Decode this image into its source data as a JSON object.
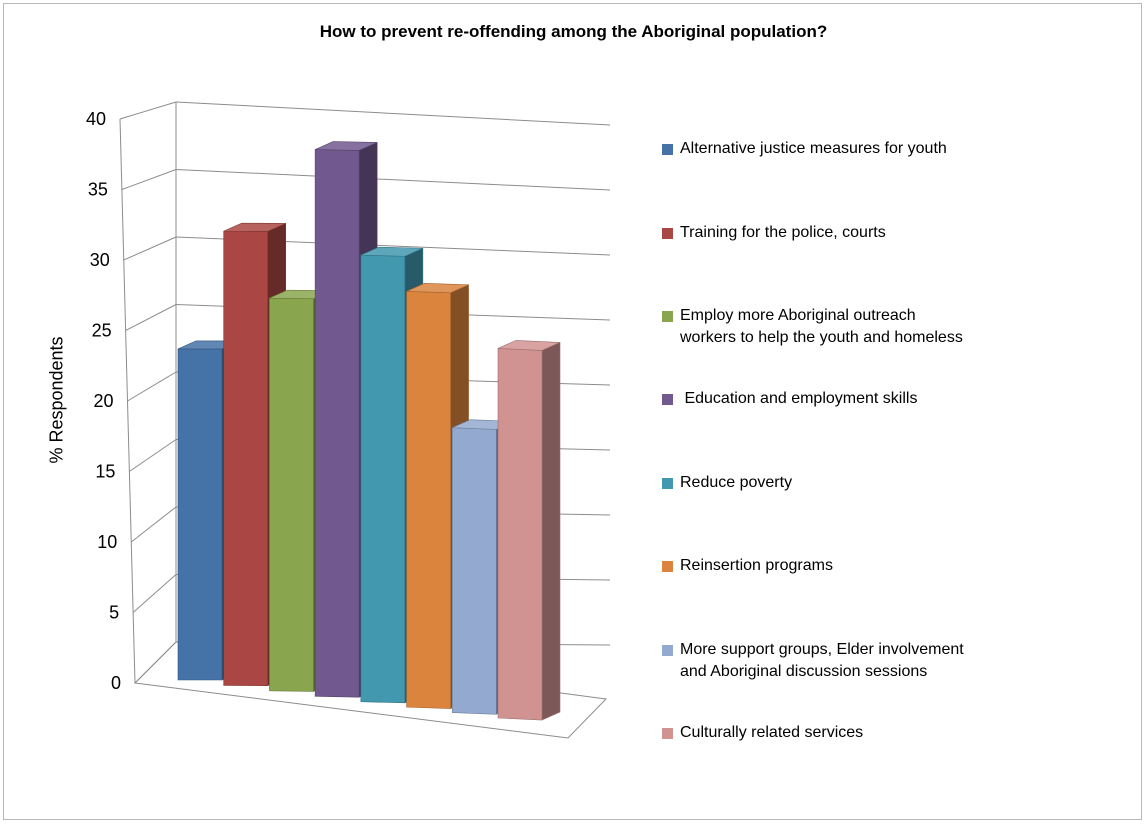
{
  "chart_data": {
    "type": "bar",
    "title": "How to prevent re-offending among the Aboriginal population?",
    "ylabel": "% Respondents",
    "xlabel": "",
    "ylim": [
      0,
      40
    ],
    "yticks": [
      "0",
      "5",
      "10",
      "15",
      "20",
      "25",
      "30",
      "35",
      "40"
    ],
    "grid": true,
    "three_d": true,
    "legend_position": "right",
    "categories": [
      "Alternative justice measures for youth",
      "Training for the police, courts",
      "Employ more Aboriginal outreach workers to help the youth and homeless",
      "Education and employment skills",
      "Reduce poverty",
      "Reinsertion programs",
      "More support groups, Elder involvement and Aboriginal discussion sessions",
      "Culturally related services"
    ],
    "legend": [
      [
        "Alternative justice measures for youth"
      ],
      [
        "Training for the police, courts"
      ],
      [
        "Employ more Aboriginal outreach",
        "workers to help the youth and homeless"
      ],
      [
        " Education and employment skills"
      ],
      [
        "Reduce poverty"
      ],
      [
        "Reinsertion programs"
      ],
      [
        "More support groups, Elder involvement",
        "and Aboriginal discussion sessions"
      ],
      [
        "Culturally related services"
      ]
    ],
    "values": [
      21.5,
      29.5,
      25.5,
      35.5,
      29,
      27,
      18.5,
      24
    ],
    "colors": [
      "#4572A7",
      "#AA4643",
      "#89A54E",
      "#71588F",
      "#4198AF",
      "#DB843D",
      "#93A9CF",
      "#D19392"
    ]
  }
}
